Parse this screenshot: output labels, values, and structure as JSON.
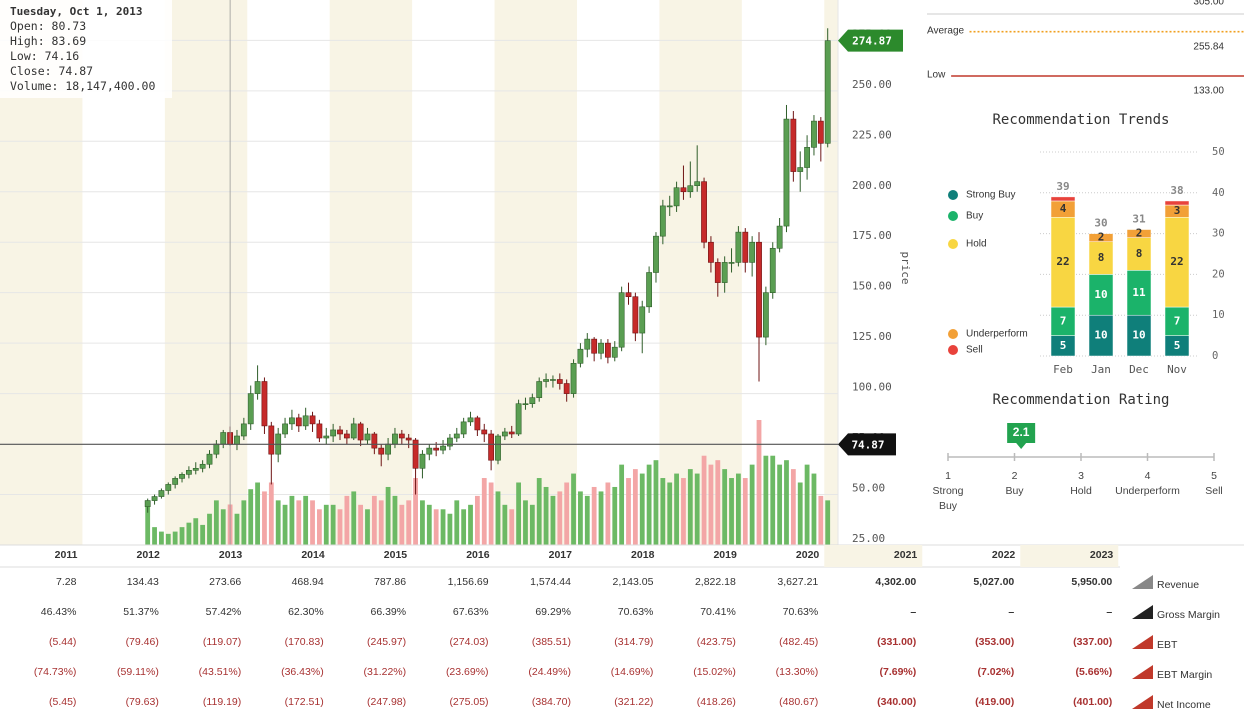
{
  "chart_data": [
    {
      "type": "candlestick",
      "y_label": "price",
      "x": [
        "2012-10",
        "2012-11",
        "2012-12",
        "2013-01",
        "2013-02",
        "2013-03",
        "2013-04",
        "2013-05",
        "2013-06",
        "2013-07",
        "2013-08",
        "2013-09",
        "2013-10",
        "2013-11",
        "2013-12",
        "2014-01",
        "2014-02",
        "2014-03",
        "2014-04",
        "2014-05",
        "2014-06",
        "2014-07",
        "2014-08",
        "2014-09",
        "2014-10",
        "2014-11",
        "2014-12",
        "2015-01",
        "2015-02",
        "2015-03",
        "2015-04",
        "2015-05",
        "2015-06",
        "2015-07",
        "2015-08",
        "2015-09",
        "2015-10",
        "2015-11",
        "2015-12",
        "2016-01",
        "2016-02",
        "2016-03",
        "2016-04",
        "2016-05",
        "2016-06",
        "2016-07",
        "2016-08",
        "2016-09",
        "2016-10",
        "2016-11",
        "2016-12",
        "2017-01",
        "2017-02",
        "2017-03",
        "2017-04",
        "2017-05",
        "2017-06",
        "2017-07",
        "2017-08",
        "2017-09",
        "2017-10",
        "2017-11",
        "2017-12",
        "2018-01",
        "2018-02",
        "2018-03",
        "2018-04",
        "2018-05",
        "2018-06",
        "2018-07",
        "2018-08",
        "2018-09",
        "2018-10",
        "2018-11",
        "2018-12",
        "2019-01",
        "2019-02",
        "2019-03",
        "2019-04",
        "2019-05",
        "2019-06",
        "2019-07",
        "2019-08",
        "2019-09",
        "2019-10",
        "2019-11",
        "2019-12",
        "2020-01",
        "2020-02",
        "2020-03",
        "2020-04",
        "2020-05",
        "2020-06",
        "2020-07",
        "2020-08",
        "2020-09",
        "2020-10",
        "2020-11",
        "2020-12",
        "2021-01"
      ],
      "ohlc": [
        [
          44,
          48,
          41,
          47
        ],
        [
          47,
          50,
          45,
          49
        ],
        [
          49,
          53,
          48,
          52
        ],
        [
          52,
          56,
          50,
          55
        ],
        [
          55,
          59,
          53,
          58
        ],
        [
          58,
          61,
          56,
          60
        ],
        [
          60,
          64,
          58,
          62
        ],
        [
          62,
          66,
          60,
          63
        ],
        [
          63,
          67,
          61,
          65
        ],
        [
          65,
          72,
          63,
          70
        ],
        [
          70,
          77,
          68,
          75
        ],
        [
          75,
          82,
          73,
          80.73
        ],
        [
          80.73,
          83.69,
          74.16,
          74.87
        ],
        [
          74.87,
          82,
          72,
          79
        ],
        [
          79,
          88,
          77,
          85
        ],
        [
          85,
          104,
          82,
          100
        ],
        [
          100,
          114,
          97,
          106
        ],
        [
          106,
          108,
          80,
          84
        ],
        [
          84,
          86,
          55,
          70
        ],
        [
          70,
          83,
          66,
          80
        ],
        [
          80,
          88,
          78,
          85
        ],
        [
          85,
          92,
          82,
          88
        ],
        [
          88,
          90,
          81,
          84
        ],
        [
          84,
          93,
          82,
          89
        ],
        [
          89,
          91,
          81,
          85
        ],
        [
          85,
          87,
          76,
          78
        ],
        [
          78,
          83,
          75,
          79
        ],
        [
          79,
          85,
          76,
          82
        ],
        [
          82,
          84,
          77,
          80
        ],
        [
          80,
          82,
          75,
          78
        ],
        [
          78,
          88,
          77,
          85
        ],
        [
          85,
          86,
          74,
          77
        ],
        [
          77,
          83,
          75,
          80
        ],
        [
          80,
          81,
          70,
          73
        ],
        [
          73,
          75,
          64,
          70
        ],
        [
          70,
          78,
          67,
          75
        ],
        [
          75,
          83,
          73,
          80
        ],
        [
          80,
          82,
          75,
          78
        ],
        [
          78,
          80,
          73,
          77
        ],
        [
          77,
          78,
          50,
          63
        ],
        [
          63,
          72,
          58,
          70
        ],
        [
          70,
          75,
          67,
          73
        ],
        [
          73,
          76,
          69,
          72
        ],
        [
          72,
          77,
          70,
          74
        ],
        [
          74,
          80,
          72,
          78
        ],
        [
          78,
          83,
          76,
          80
        ],
        [
          80,
          88,
          78,
          86
        ],
        [
          86,
          91,
          84,
          88
        ],
        [
          88,
          89,
          79,
          82
        ],
        [
          82,
          85,
          76,
          80
        ],
        [
          80,
          82,
          62,
          67
        ],
        [
          67,
          80,
          65,
          79
        ],
        [
          79,
          83,
          77,
          81
        ],
        [
          81,
          84,
          78,
          80
        ],
        [
          80,
          97,
          79,
          95
        ],
        [
          95,
          98,
          92,
          95
        ],
        [
          95,
          100,
          93,
          98
        ],
        [
          98,
          108,
          96,
          106
        ],
        [
          106,
          110,
          103,
          107
        ],
        [
          107,
          109,
          103,
          107
        ],
        [
          107,
          110,
          102,
          105
        ],
        [
          105,
          107,
          96,
          100
        ],
        [
          100,
          117,
          98,
          115
        ],
        [
          115,
          125,
          113,
          122
        ],
        [
          122,
          130,
          118,
          127
        ],
        [
          127,
          128,
          116,
          120
        ],
        [
          120,
          127,
          117,
          125
        ],
        [
          125,
          127,
          115,
          118
        ],
        [
          118,
          126,
          116,
          123
        ],
        [
          123,
          153,
          121,
          150
        ],
        [
          150,
          155,
          144,
          148
        ],
        [
          148,
          150,
          126,
          130
        ],
        [
          130,
          146,
          120,
          143
        ],
        [
          143,
          163,
          140,
          160
        ],
        [
          160,
          180,
          155,
          178
        ],
        [
          178,
          196,
          174,
          193
        ],
        [
          193,
          198,
          188,
          193
        ],
        [
          193,
          205,
          190,
          202
        ],
        [
          202,
          213,
          196,
          200
        ],
        [
          200,
          215,
          197,
          203
        ],
        [
          203,
          223,
          200,
          205
        ],
        [
          205,
          207,
          172,
          175
        ],
        [
          175,
          178,
          160,
          165
        ],
        [
          165,
          167,
          148,
          155
        ],
        [
          155,
          168,
          150,
          165
        ],
        [
          165,
          172,
          160,
          165
        ],
        [
          165,
          183,
          163,
          180
        ],
        [
          180,
          182,
          160,
          165
        ],
        [
          165,
          178,
          158,
          175
        ],
        [
          175,
          180,
          106,
          128
        ],
        [
          128,
          153,
          124,
          150
        ],
        [
          150,
          175,
          147,
          172
        ],
        [
          172,
          187,
          170,
          183
        ],
        [
          183,
          243,
          180,
          236
        ],
        [
          236,
          240,
          205,
          210
        ],
        [
          210,
          220,
          200,
          212
        ],
        [
          212,
          228,
          206,
          222
        ],
        [
          222,
          238,
          218,
          235
        ],
        [
          235,
          237,
          215,
          224
        ],
        [
          224,
          281,
          222,
          274.87
        ]
      ],
      "volume": [
        20000000.0,
        8000000.0,
        6000000.0,
        5000000.0,
        6000000.0,
        8000000.0,
        10000000.0,
        12000000.0,
        9000000.0,
        14000000.0,
        20000000.0,
        16000000.0,
        18147400,
        14000000.0,
        20000000.0,
        25000000.0,
        28000000.0,
        24000000.0,
        28000000.0,
        20000000.0,
        18000000.0,
        22000000.0,
        20000000.0,
        22000000.0,
        20000000.0,
        16000000.0,
        18000000.0,
        18000000.0,
        16000000.0,
        22000000.0,
        24000000.0,
        18000000.0,
        16000000.0,
        22000000.0,
        20000000.0,
        26000000.0,
        22000000.0,
        18000000.0,
        20000000.0,
        30000000.0,
        20000000.0,
        18000000.0,
        16000000.0,
        16000000.0,
        14000000.0,
        20000000.0,
        16000000.0,
        18000000.0,
        22000000.0,
        30000000.0,
        28000000.0,
        24000000.0,
        18000000.0,
        16000000.0,
        28000000.0,
        20000000.0,
        18000000.0,
        30000000.0,
        26000000.0,
        22000000.0,
        24000000.0,
        28000000.0,
        32000000.0,
        24000000.0,
        22000000.0,
        26000000.0,
        24000000.0,
        28000000.0,
        26000000.0,
        36000000.0,
        30000000.0,
        34000000.0,
        32000000.0,
        36000000.0,
        38000000.0,
        30000000.0,
        28000000.0,
        32000000.0,
        30000000.0,
        34000000.0,
        32000000.0,
        40000000.0,
        36000000.0,
        38000000.0,
        34000000.0,
        30000000.0,
        32000000.0,
        30000000.0,
        36000000.0,
        56000000.0,
        40000000.0,
        40000000.0,
        36000000.0,
        38000000.0,
        34000000.0,
        28000000.0,
        36000000.0,
        32000000.0,
        22000000.0,
        20000000.0
      ],
      "xlim": [
        "2011-01",
        "2021-02"
      ],
      "ylim": [
        25,
        295
      ],
      "volume_lim": [
        0,
        56000000.0
      ],
      "yticks": [
        {
          "value": 25,
          "label": "25.00"
        },
        {
          "value": 50,
          "label": "50.00"
        },
        {
          "value": 75,
          "label": "75.00"
        },
        {
          "value": 100,
          "label": "100.00"
        },
        {
          "value": 125,
          "label": "125.00"
        },
        {
          "value": 150,
          "label": "150.00"
        },
        {
          "value": 175,
          "label": "175.00"
        },
        {
          "value": 200,
          "label": "200.00"
        },
        {
          "value": 225,
          "label": "225.00"
        },
        {
          "value": 250,
          "label": "250.00"
        },
        {
          "value": 275,
          "label": "275.00"
        }
      ],
      "grid": true,
      "up_color": "#5a9e52",
      "down_color": "#c62a2a",
      "volume_up_color": "#6cb964",
      "volume_down_color": "#f3a6a6",
      "tooltip": {
        "date": "Tuesday, Oct 1, 2013",
        "rows": [
          {
            "label": "Open:",
            "value": 80.73
          },
          {
            "label": "High:",
            "value": 83.69
          },
          {
            "label": "Low:",
            "value": 74.16
          },
          {
            "label": "Close:",
            "value": 74.87
          },
          {
            "label": "Volume:",
            "value": 18147400,
            "value_label": "18,147,400.00"
          }
        ]
      }
    },
    {
      "type": "price_target",
      "levels": [
        {
          "value": 305,
          "value_label": "305.00",
          "color": "#dddddd"
        },
        {
          "name": "Average",
          "value": 255.84,
          "value_label": "255.84",
          "color": "#f0a020",
          "style": "dotted"
        },
        {
          "name": "Low",
          "value": 133,
          "value_label": "133.00",
          "color": "#c0392b"
        }
      ]
    },
    {
      "type": "stacked_bar",
      "title": "Recommendation Trends",
      "categories": [
        "Feb",
        "Jan",
        "Dec",
        "Nov"
      ],
      "series": [
        {
          "name": "Strong Buy",
          "color": "#0f7f7a",
          "values": [
            5,
            10,
            10,
            5
          ]
        },
        {
          "name": "Buy",
          "color": "#1bb36a",
          "values": [
            7,
            10,
            11,
            7
          ]
        },
        {
          "name": "Hold",
          "color": "#f8d642",
          "values": [
            22,
            8,
            8,
            22
          ]
        },
        {
          "name": "Underperform",
          "color": "#f2a037",
          "values": [
            4,
            2,
            2,
            3
          ]
        },
        {
          "name": "Sell",
          "color": "#e8423b",
          "values": [
            1,
            0,
            0,
            1
          ]
        }
      ],
      "totals": [
        39,
        30,
        31,
        38
      ],
      "ylim": [
        0,
        50
      ],
      "yticks": [
        0,
        10,
        20,
        30,
        40,
        50
      ]
    },
    {
      "type": "rating",
      "title": "Recommendation Rating",
      "value": 2.1,
      "value_label": "2.1",
      "xlim": [
        1,
        5
      ],
      "xticks": [
        1,
        2,
        3,
        4,
        5
      ],
      "tick_names": [
        "Strong Buy",
        "Buy",
        "Hold",
        "Underperform",
        "Sell"
      ],
      "color": "#22a34f"
    }
  ],
  "table": {
    "columns": [
      "2011",
      "2012",
      "2013",
      "2014",
      "2015",
      "2016",
      "2017",
      "2018",
      "2019",
      "2020",
      "2021",
      "2022",
      "2023"
    ],
    "rows": [
      {
        "name": "Revenue",
        "cells": [
          "7.28",
          "134.43",
          "273.66",
          "468.94",
          "787.86",
          "1,156.69",
          "1,574.44",
          "2,143.05",
          "2,822.18",
          "3,627.21",
          "4,302.00",
          "5,027.00",
          "5,950.00"
        ]
      },
      {
        "name": "Gross Margin",
        "cells": [
          "46.43%",
          "51.37%",
          "57.42%",
          "62.30%",
          "66.39%",
          "67.63%",
          "69.29%",
          "70.63%",
          "70.41%",
          "70.63%",
          "–",
          "–",
          "–"
        ]
      },
      {
        "name": "EBT",
        "cells": [
          "(5.44)",
          "(79.46)",
          "(119.07)",
          "(170.83)",
          "(245.97)",
          "(274.03)",
          "(385.51)",
          "(314.79)",
          "(423.75)",
          "(482.45)",
          "(331.00)",
          "(353.00)",
          "(337.00)"
        ]
      },
      {
        "name": "EBT Margin",
        "cells": [
          "(74.73%)",
          "(59.11%)",
          "(43.51%)",
          "(36.43%)",
          "(31.22%)",
          "(23.69%)",
          "(24.49%)",
          "(14.69%)",
          "(15.02%)",
          "(13.30%)",
          "(7.69%)",
          "(7.02%)",
          "(5.66%)"
        ]
      },
      {
        "name": "Net Income",
        "cells": [
          "(5.45)",
          "(79.63)",
          "(119.19)",
          "(172.51)",
          "(247.98)",
          "(275.05)",
          "(384.70)",
          "(321.22)",
          "(418.26)",
          "(480.67)",
          "(340.00)",
          "(419.00)",
          "(401.00)"
        ]
      }
    ]
  }
}
